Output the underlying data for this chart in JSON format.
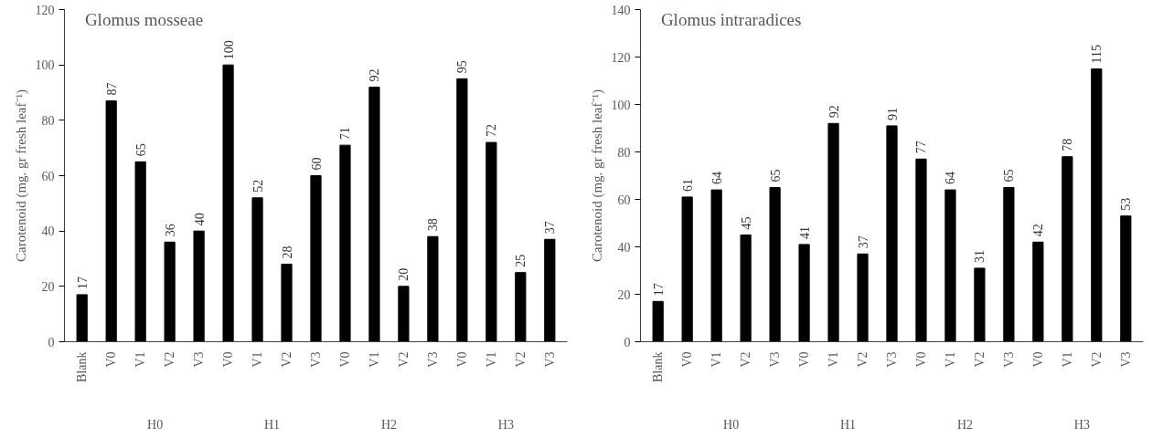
{
  "chart_data": [
    {
      "type": "bar",
      "title": "Glomus  mosseae",
      "ylabel": "Carotenoid (mg. gr fresh leaf⁻¹)",
      "categories": [
        "Blank",
        "V0",
        "V1",
        "V2",
        "V3",
        "V0",
        "V1",
        "V2",
        "V3",
        "V0",
        "V1",
        "V2",
        "V3",
        "V0",
        "V1",
        "V2",
        "V3"
      ],
      "values": [
        17,
        87,
        65,
        36,
        40,
        100,
        52,
        28,
        60,
        71,
        92,
        20,
        38,
        95,
        72,
        25,
        37
      ],
      "color": "#000000",
      "annotations": [
        "H0",
        "H1",
        "H2",
        "H3"
      ],
      "ylim": [
        0,
        120
      ],
      "yticks": [
        0,
        20,
        40,
        60,
        80,
        100,
        120
      ],
      "grid": false,
      "data_labels": true
    },
    {
      "type": "bar",
      "title": "Glomus  intraradices",
      "ylabel": "Carotenoid (mg. gr fresh leaf⁻¹)",
      "categories": [
        "Blank",
        "V0",
        "V1",
        "V2",
        "V3",
        "V0",
        "V1",
        "V2",
        "V3",
        "V0",
        "V1",
        "V2",
        "V3",
        "V0",
        "V1",
        "V2",
        "V3"
      ],
      "values": [
        17,
        61,
        64,
        45,
        65,
        41,
        92,
        37,
        91,
        77,
        64,
        31,
        65,
        42,
        78,
        115,
        53
      ],
      "color": "#000000",
      "annotations": [
        "H0",
        "H1",
        "H2",
        "H3"
      ],
      "ylim": [
        0,
        140
      ],
      "yticks": [
        0,
        20,
        40,
        60,
        80,
        100,
        120,
        140
      ],
      "grid": false,
      "data_labels": true
    }
  ]
}
